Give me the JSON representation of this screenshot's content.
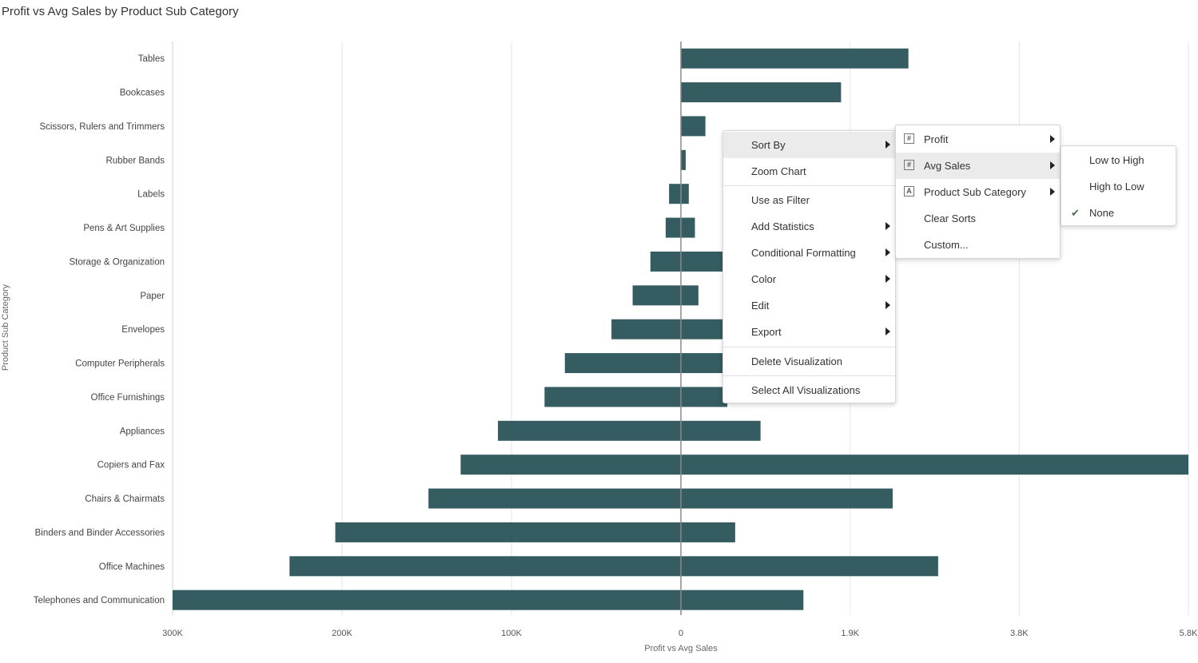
{
  "chart_data": {
    "type": "bar",
    "title": "Profit vs Avg Sales by Product Sub Category",
    "xlabel": "Profit vs Avg Sales",
    "ylabel": "Product Sub Category",
    "grid": true,
    "left_axis": {
      "ticks": [
        "300K",
        "200K",
        "100K",
        "0"
      ],
      "range": [
        300000,
        0
      ]
    },
    "right_axis": {
      "ticks": [
        "1.9K",
        "3.8K",
        "5.8K"
      ],
      "range": [
        0,
        5800
      ]
    },
    "categories": [
      "Tables",
      "Bookcases",
      "Scissors, Rulers and Trimmers",
      "Rubber Bands",
      "Labels",
      "Pens & Art Supplies",
      "Storage & Organization",
      "Paper",
      "Envelopes",
      "Computer Peripherals",
      "Office Furnishings",
      "Appliances",
      "Copiers and Fax",
      "Chairs & Chairmats",
      "Binders and Binder Accessories",
      "Office Machines",
      "Telephones and Communication"
    ],
    "series": [
      {
        "name": "Profit",
        "values": [
          0,
          0,
          0,
          0,
          7000,
          9000,
          18000,
          28500,
          41000,
          68500,
          80500,
          108000,
          130000,
          149000,
          204000,
          231000,
          300000
        ]
      },
      {
        "name": "Avg Sales",
        "values": [
          2600,
          1830,
          280,
          55,
          90,
          160,
          480,
          200,
          480,
          480,
          530,
          910,
          5800,
          2420,
          620,
          2940,
          1400
        ]
      }
    ],
    "bar_color": "#355c61"
  },
  "context_menu": {
    "items": [
      {
        "label": "Sort By",
        "submenu": true,
        "highlighted": true
      },
      {
        "label": "Zoom Chart"
      },
      {
        "label": "Use as Filter"
      },
      {
        "label": "Add Statistics",
        "submenu": true
      },
      {
        "label": "Conditional Formatting",
        "submenu": true
      },
      {
        "label": "Color",
        "submenu": true
      },
      {
        "label": "Edit",
        "submenu": true
      },
      {
        "label": "Export",
        "submenu": true
      },
      {
        "label": "Delete Visualization"
      },
      {
        "label": "Select All Visualizations"
      }
    ]
  },
  "sort_submenu": {
    "items": [
      {
        "label": "Profit",
        "icon": "#",
        "submenu": true
      },
      {
        "label": "Avg Sales",
        "icon": "#",
        "submenu": true,
        "highlighted": true
      },
      {
        "label": "Product Sub Category",
        "icon": "A",
        "submenu": true
      },
      {
        "label": "Clear Sorts"
      },
      {
        "label": "Custom..."
      }
    ]
  },
  "order_submenu": {
    "items": [
      {
        "label": "Low to High"
      },
      {
        "label": "High to Low"
      },
      {
        "label": "None",
        "checked": true
      }
    ],
    "check_glyph": "✔"
  }
}
